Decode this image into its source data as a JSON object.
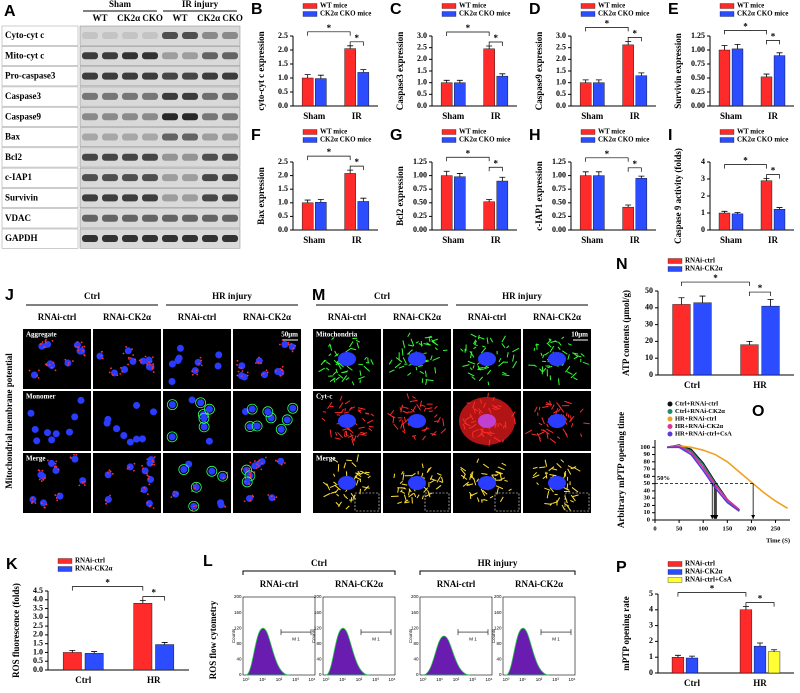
{
  "chart_data": [
    {
      "type": "bar",
      "panel": "B",
      "ylabel": "cyto-cyt c expression",
      "categories": [
        "Sham",
        "IR"
      ],
      "series": [
        {
          "name": "WT mice",
          "color": "#ff2b2b",
          "values": [
            1.0,
            2.05
          ],
          "errors": [
            0.12,
            0.1
          ]
        },
        {
          "name": "CK2α CKO mice",
          "color": "#2b4cff",
          "values": [
            0.98,
            1.2
          ],
          "errors": [
            0.12,
            0.1
          ]
        }
      ],
      "ylim": [
        0,
        2.5
      ],
      "yticks": [
        {
          "value": 0,
          "label": "0.0"
        },
        0.5,
        {
          "value": 1,
          "label": "1.0"
        },
        1.5,
        {
          "value": 2,
          "label": "2.0"
        },
        2.5
      ],
      "annotations": [
        "*",
        "*"
      ]
    },
    {
      "type": "bar",
      "panel": "C",
      "ylabel": "Caspase3 expression",
      "categories": [
        "Sham",
        "IR"
      ],
      "series": [
        {
          "name": "WT mice",
          "color": "#ff2b2b",
          "values": [
            1.0,
            2.45
          ],
          "errors": [
            0.1,
            0.12
          ]
        },
        {
          "name": "CK2α CKO mice",
          "color": "#2b4cff",
          "values": [
            1.0,
            1.28
          ],
          "errors": [
            0.1,
            0.1
          ]
        }
      ],
      "ylim": [
        0,
        3
      ],
      "yticks": [
        {
          "value": 0,
          "label": "0.0"
        },
        0.5,
        {
          "value": 1,
          "label": "1.0"
        },
        1.5,
        {
          "value": 2,
          "label": "2.0"
        },
        2.5,
        {
          "value": 3,
          "label": "3.0"
        }
      ],
      "annotations": [
        "*",
        "*"
      ]
    },
    {
      "type": "bar",
      "panel": "D",
      "ylabel": "Caspase9 expression",
      "categories": [
        "Sham",
        "IR"
      ],
      "series": [
        {
          "name": "WT mice",
          "color": "#ff2b2b",
          "values": [
            1.0,
            2.62
          ],
          "errors": [
            0.12,
            0.15
          ]
        },
        {
          "name": "CK2α CKO mice",
          "color": "#2b4cff",
          "values": [
            1.0,
            1.3
          ],
          "errors": [
            0.12,
            0.12
          ]
        }
      ],
      "ylim": [
        0,
        3
      ],
      "yticks": [
        {
          "value": 0,
          "label": "0.0"
        },
        0.5,
        {
          "value": 1,
          "label": "1.0"
        },
        1.5,
        {
          "value": 2,
          "label": "2.0"
        },
        2.5,
        {
          "value": 3,
          "label": "3.0"
        }
      ],
      "annotations": [
        "*",
        "*"
      ]
    },
    {
      "type": "bar",
      "panel": "E",
      "ylabel": "Survivin expression",
      "categories": [
        "Sham",
        "IR"
      ],
      "series": [
        {
          "name": "WT mice",
          "color": "#ff2b2b",
          "values": [
            1.0,
            0.52
          ],
          "errors": [
            0.08,
            0.05
          ]
        },
        {
          "name": "CK2α CKO mice",
          "color": "#2b4cff",
          "values": [
            1.02,
            0.9
          ],
          "errors": [
            0.08,
            0.05
          ]
        }
      ],
      "ylim": [
        0,
        1.25
      ],
      "yticks": [
        {
          "value": 0,
          "label": "0.00"
        },
        0.25,
        {
          "value": 0.5,
          "label": "0.50"
        },
        0.75,
        {
          "value": 1,
          "label": "1.00"
        },
        1.25
      ],
      "annotations": [
        "*",
        "*"
      ]
    },
    {
      "type": "bar",
      "panel": "F",
      "ylabel": "Bax expression",
      "categories": [
        "Sham",
        "IR"
      ],
      "series": [
        {
          "name": "WT mice",
          "color": "#ff2b2b",
          "values": [
            1.0,
            2.08
          ],
          "errors": [
            0.1,
            0.12
          ]
        },
        {
          "name": "CK2α CKO mice",
          "color": "#2b4cff",
          "values": [
            1.02,
            1.05
          ],
          "errors": [
            0.1,
            0.12
          ]
        }
      ],
      "ylim": [
        0,
        2.5
      ],
      "yticks": [
        {
          "value": 0,
          "label": "0.0"
        },
        0.5,
        {
          "value": 1,
          "label": "1.0"
        },
        1.5,
        {
          "value": 2,
          "label": "2.0"
        },
        2.5
      ],
      "annotations": [
        "*",
        "*"
      ]
    },
    {
      "type": "bar",
      "panel": "G",
      "ylabel": "Bcl2 expression",
      "categories": [
        "Sham",
        "IR"
      ],
      "series": [
        {
          "name": "WT mice",
          "color": "#ff2b2b",
          "values": [
            1.0,
            0.52
          ],
          "errors": [
            0.08,
            0.04
          ]
        },
        {
          "name": "CK2α CKO mice",
          "color": "#2b4cff",
          "values": [
            0.98,
            0.9
          ],
          "errors": [
            0.06,
            0.07
          ]
        }
      ],
      "ylim": [
        0,
        1.25
      ],
      "yticks": [
        {
          "value": 0,
          "label": "0.00"
        },
        0.25,
        {
          "value": 0.5,
          "label": "0.50"
        },
        0.75,
        {
          "value": 1,
          "label": "1.00"
        },
        1.25
      ],
      "annotations": [
        "*",
        "*"
      ]
    },
    {
      "type": "bar",
      "panel": "H",
      "ylabel": "c-IAP1 expression",
      "categories": [
        "Sham",
        "IR"
      ],
      "series": [
        {
          "name": "WT mice",
          "color": "#ff2b2b",
          "values": [
            1.0,
            0.42
          ],
          "errors": [
            0.07,
            0.04
          ]
        },
        {
          "name": "CK2α CKO mice",
          "color": "#2b4cff",
          "values": [
            1.0,
            0.95
          ],
          "errors": [
            0.07,
            0.04
          ]
        }
      ],
      "ylim": [
        0,
        1.25
      ],
      "yticks": [
        {
          "value": 0,
          "label": "0.00"
        },
        0.25,
        {
          "value": 0.5,
          "label": "0.50"
        },
        0.75,
        {
          "value": 1,
          "label": "1.00"
        },
        1.25
      ],
      "annotations": [
        "*",
        "*"
      ]
    },
    {
      "type": "bar",
      "panel": "I",
      "ylabel": "Caspase 9 activity (folds)",
      "categories": [
        "Sham",
        "IR"
      ],
      "series": [
        {
          "name": "WT mice",
          "color": "#ff2b2b",
          "values": [
            1.0,
            2.9
          ],
          "errors": [
            0.1,
            0.12
          ]
        },
        {
          "name": "CK2α CKO mice",
          "color": "#2b4cff",
          "values": [
            0.95,
            1.22
          ],
          "errors": [
            0.08,
            0.1
          ]
        }
      ],
      "ylim": [
        0,
        4
      ],
      "yticks": [
        0,
        1,
        2,
        3,
        4
      ],
      "annotations": [
        "*",
        "*"
      ]
    },
    {
      "type": "bar",
      "panel": "N",
      "ylabel": "ATP contents (μmol/g)",
      "categories": [
        "Ctrl",
        "HR"
      ],
      "series": [
        {
          "name": "RNAi-ctrl",
          "color": "#ff2b2b",
          "values": [
            42,
            18
          ],
          "errors": [
            4,
            2
          ]
        },
        {
          "name": "RNAi-CK2α",
          "color": "#2b4cff",
          "values": [
            43,
            41
          ],
          "errors": [
            4,
            4
          ]
        }
      ],
      "ylim": [
        0,
        50
      ],
      "yticks": [
        0,
        10,
        20,
        30,
        40,
        50
      ],
      "annotations": [
        "*",
        "*"
      ]
    },
    {
      "type": "line",
      "panel": "O",
      "ylabel": "Arbitrary mPTP opening time",
      "xlabel": "Time (S)",
      "x": [
        25,
        50,
        75,
        100,
        125,
        150,
        175,
        200,
        225,
        250,
        275
      ],
      "series": [
        {
          "name": "Ctrl+RNAi-ctrl",
          "color": "#111111",
          "values": [
            100,
            103,
            97,
            78,
            52,
            28,
            14,
            null,
            null,
            null,
            null
          ]
        },
        {
          "name": "Ctrl+RNAi-CK2α",
          "color": "#1f8a70",
          "values": [
            100,
            102,
            95,
            76,
            50,
            27,
            13,
            null,
            null,
            null,
            null
          ]
        },
        {
          "name": "HR+RNAi-ctrl",
          "color": "#f0a020",
          "values": [
            100,
            102,
            100,
            96,
            90,
            80,
            66,
            52,
            38,
            26,
            16
          ]
        },
        {
          "name": "HR+RNAi-CK2α",
          "color": "#e0309a",
          "values": [
            100,
            101,
            93,
            72,
            48,
            28,
            14,
            null,
            null,
            null,
            null
          ]
        },
        {
          "name": "HR+RNAi-ctrl+CsA",
          "color": "#5a3ad8",
          "values": [
            100,
            100,
            90,
            68,
            44,
            24,
            12,
            null,
            null,
            null,
            null
          ]
        }
      ],
      "xlim": [
        0,
        280
      ],
      "ylim": [
        0,
        110
      ],
      "xticks": [
        0,
        50,
        100,
        150,
        200,
        250
      ],
      "yticks": [
        0,
        10,
        20,
        30,
        40,
        50,
        60,
        70,
        80,
        90,
        100
      ],
      "annotation": {
        "value": 50,
        "label": "50%"
      }
    },
    {
      "type": "bar",
      "panel": "K",
      "ylabel": "ROS fluorescence (folds)",
      "categories": [
        "Ctrl",
        "HR"
      ],
      "series": [
        {
          "name": "RNAi-ctrl",
          "color": "#ff2b2b",
          "values": [
            1.0,
            3.8
          ],
          "errors": [
            0.12,
            0.15
          ]
        },
        {
          "name": "RNAi-CK2α",
          "color": "#2b4cff",
          "values": [
            0.95,
            1.45
          ],
          "errors": [
            0.1,
            0.12
          ]
        }
      ],
      "ylim": [
        0,
        4.5
      ],
      "yticks": [
        {
          "value": 0,
          "label": "0.0"
        },
        0.5,
        {
          "value": 1,
          "label": "1.0"
        },
        1.5,
        {
          "value": 2,
          "label": "2.0"
        },
        2.5,
        {
          "value": 3,
          "label": "3.0"
        },
        3.5,
        {
          "value": 4,
          "label": "4.0"
        },
        4.5
      ],
      "annotations": [
        "*",
        "*"
      ]
    },
    {
      "type": "bar",
      "panel": "P",
      "ylabel": "mPTP opening rate",
      "categories": [
        "Ctrl",
        "HR"
      ],
      "series": [
        {
          "name": "RNAi-ctrl",
          "color": "#ff2b2b",
          "values": [
            1.0,
            4.0
          ],
          "errors": [
            0.12,
            0.2
          ]
        },
        {
          "name": "RNAi-CK2α",
          "color": "#2b4cff",
          "values": [
            0.95,
            1.7
          ],
          "errors": [
            0.12,
            0.2
          ]
        },
        {
          "name": "RNAi-ctrl+CsA",
          "color": "#ffff33",
          "values": [
            null,
            1.35
          ],
          "errors": [
            null,
            0.12
          ]
        }
      ],
      "ylim": [
        0,
        5
      ],
      "yticks": [
        0,
        1,
        2,
        3,
        4,
        5
      ],
      "annotations": [
        "*",
        "*"
      ]
    }
  ],
  "blot": {
    "panel": "A",
    "groups": [
      "Sham",
      "IR injury"
    ],
    "columns": [
      "WT",
      "CK2α CKO",
      "WT",
      "CK2α CKO"
    ],
    "rows": [
      "Cyto-cyt c",
      "Mito-cyt c",
      "Pro-caspase3",
      "Caspase3",
      "Caspase9",
      "Bax",
      "Bcl2",
      "c-IAP1",
      "Survivin",
      "VDAC",
      "GAPDH"
    ]
  },
  "membrane_potential": {
    "panel": "J",
    "side_label": "Mitochondrial membrane potential",
    "groups": [
      "Ctrl",
      "HR injury"
    ],
    "columns": [
      "RNAi-ctrl",
      "RNAi-CK2α",
      "RNAi-ctrl",
      "RNAi-CK2α"
    ],
    "rows": [
      "Aggregate",
      "Monomer",
      "Merge"
    ],
    "scale_bar": "50μm"
  },
  "cyt_c_imaging": {
    "panel": "M",
    "groups": [
      "Ctrl",
      "HR injury"
    ],
    "columns": [
      "RNAi-ctrl",
      "RNAi-CK2α",
      "RNAi-ctrl",
      "RNAi-CK2α"
    ],
    "rows": [
      "Mitochondria",
      "Cyt-c",
      "Merge"
    ],
    "scale_bar": "10μm"
  },
  "flow_cytometry": {
    "panel": "L",
    "side_label": "ROS flow cytometry",
    "groups": [
      "Ctrl",
      "HR injury"
    ],
    "columns": [
      "RNAi-ctrl",
      "RNAi-CK2α",
      "RNAi-ctrl",
      "RNAi-CK2α"
    ],
    "gate_label": "M 1",
    "y_axis_label": "Counts",
    "x_tick_labels": [
      "10⁰",
      "10¹",
      "10²",
      "10³",
      "10⁴"
    ],
    "y_tick_labels": [
      "0",
      "40",
      "80",
      "120",
      "160",
      "200"
    ]
  }
}
